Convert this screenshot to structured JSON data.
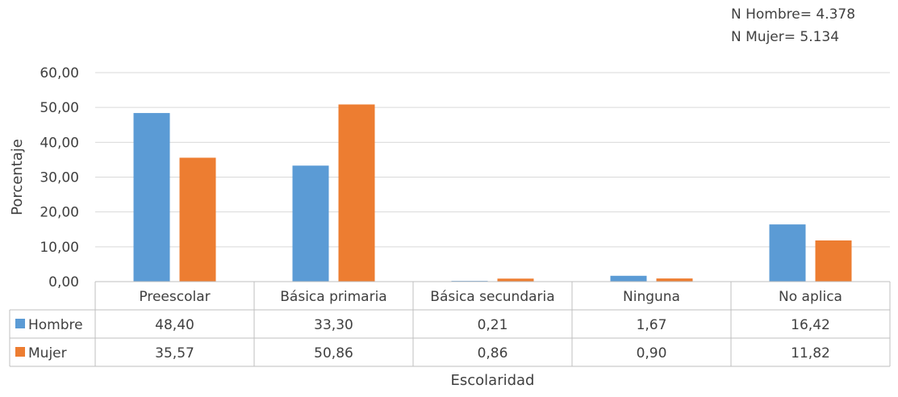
{
  "notes": {
    "n_hombre": "N Hombre= 4.378",
    "n_mujer": "N Mujer= 5.134"
  },
  "chart_data": {
    "type": "bar",
    "ylabel": "Porcentaje",
    "xlabel": "Escolaridad",
    "ylim": [
      0,
      60
    ],
    "yticks": [
      "0,00",
      "10,00",
      "20,00",
      "30,00",
      "40,00",
      "50,00",
      "60,00"
    ],
    "grid": true,
    "legend": "data-table",
    "categories": [
      "Preescolar",
      "Básica primaria",
      "Básica secundaria",
      "Ninguna",
      "No aplica"
    ],
    "series": [
      {
        "name": "Hombre",
        "color": "#5b9bd5",
        "values": [
          48.4,
          33.3,
          0.21,
          1.67,
          16.42
        ],
        "labels": [
          "48,40",
          "33,30",
          "0,21",
          "1,67",
          "16,42"
        ]
      },
      {
        "name": "Mujer",
        "color": "#ed7d31",
        "values": [
          35.57,
          50.86,
          0.86,
          0.9,
          11.82
        ],
        "labels": [
          "35,57",
          "50,86",
          "0,86",
          "0,90",
          "11,82"
        ]
      }
    ]
  }
}
